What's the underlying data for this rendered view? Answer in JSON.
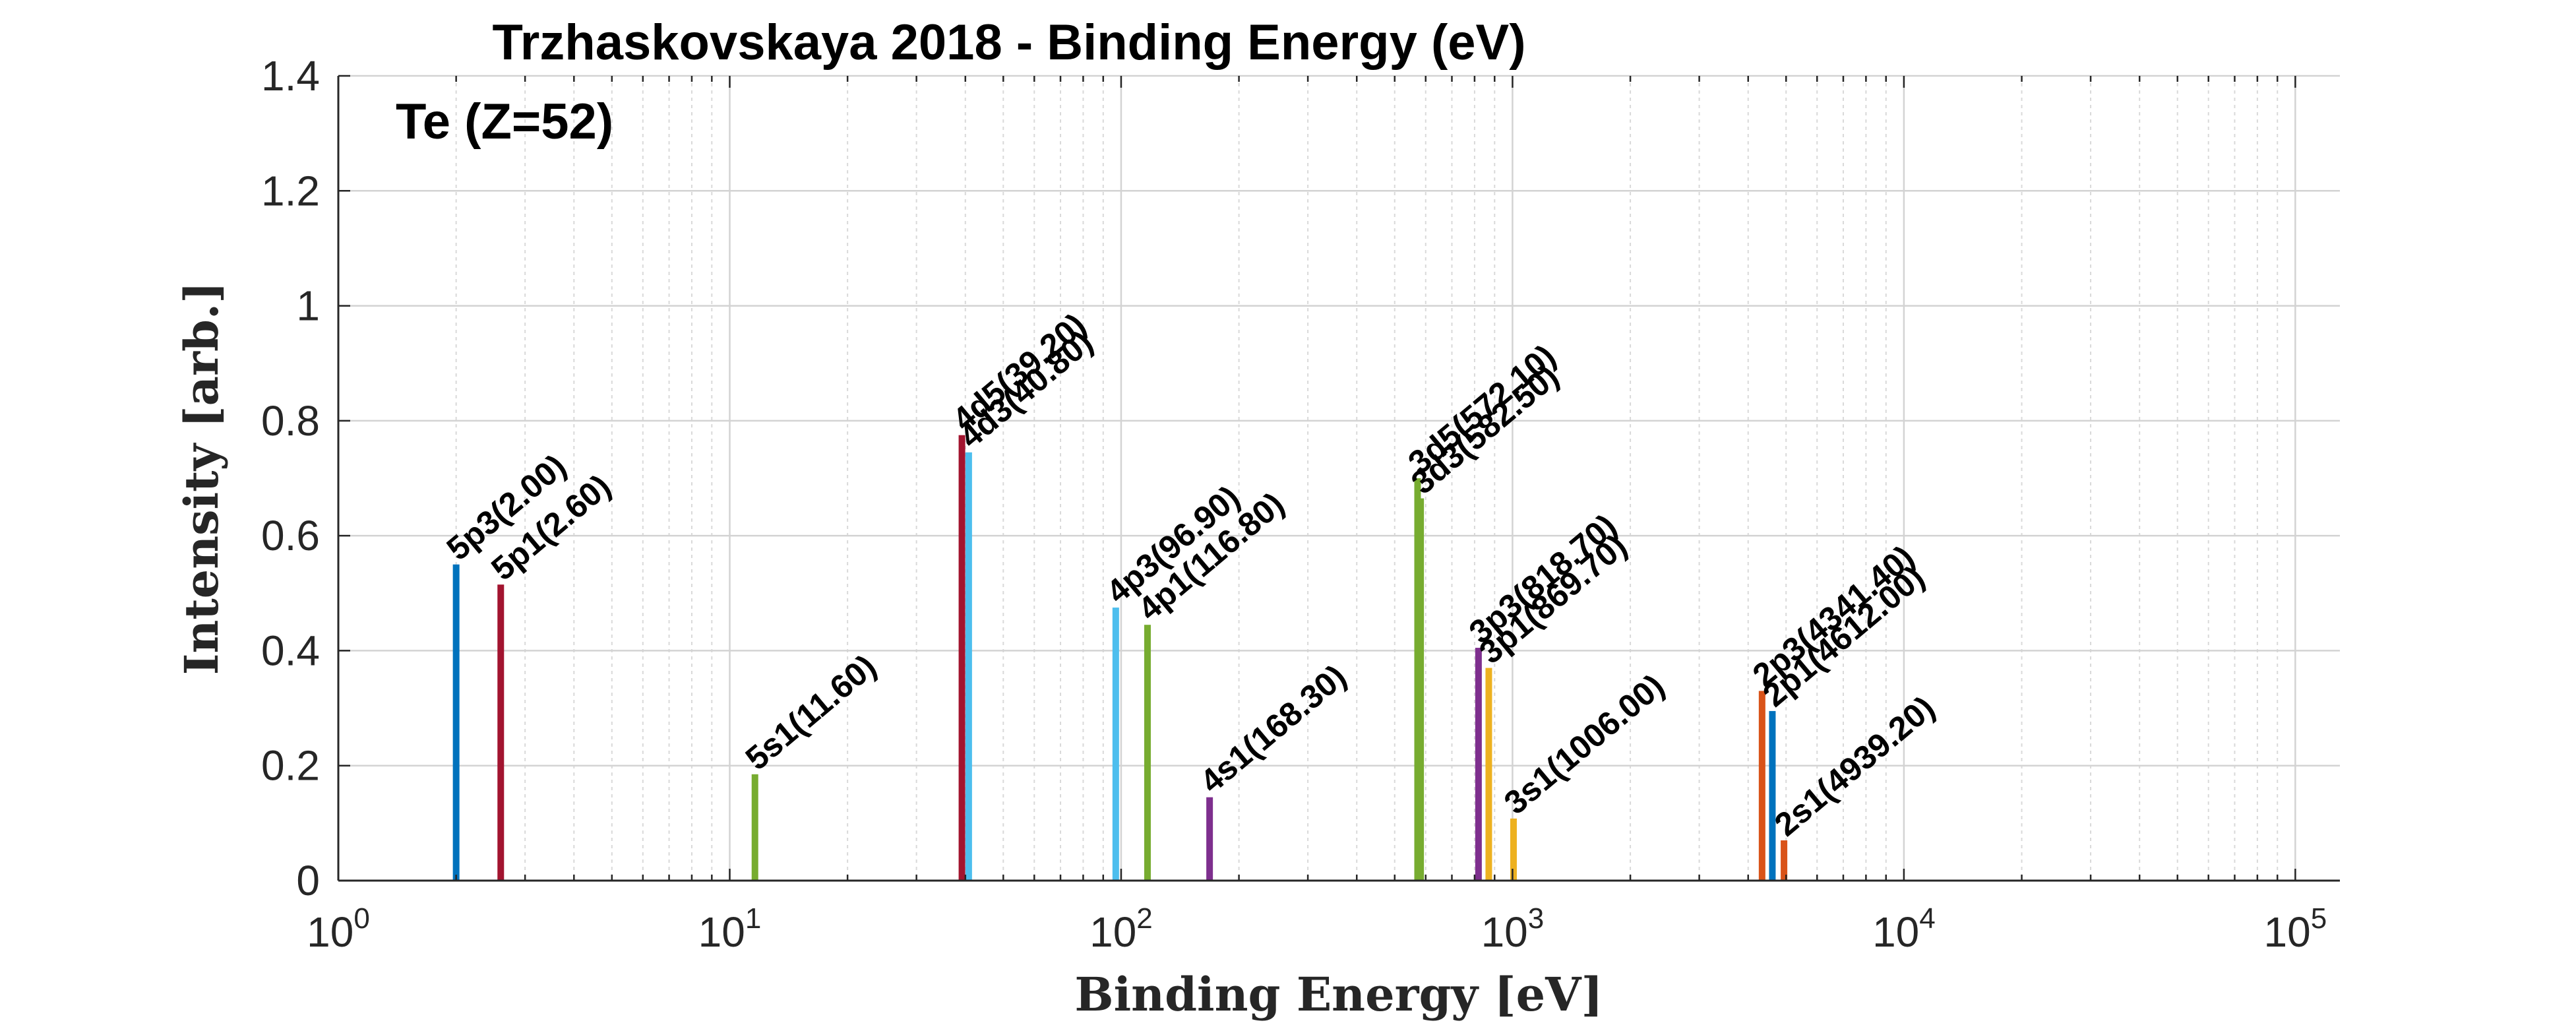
{
  "chart_data": {
    "type": "bar",
    "title": "Trzhaskovskaya 2018 - Binding Energy (eV)",
    "annotation": "Te (Z=52)",
    "xlabel": "Binding Energy [eV]",
    "ylabel": "Intensity [arb.]",
    "xscale": "log",
    "xlim": [
      1,
      130000
    ],
    "ylim": [
      0,
      1.4
    ],
    "grid": true,
    "x_ticks": [
      {
        "base": "10",
        "exp": "0"
      },
      {
        "base": "10",
        "exp": "1"
      },
      {
        "base": "10",
        "exp": "2"
      },
      {
        "base": "10",
        "exp": "3"
      },
      {
        "base": "10",
        "exp": "4"
      },
      {
        "base": "10",
        "exp": "5"
      }
    ],
    "y_ticks": [
      "0",
      "0.2",
      "0.4",
      "0.6",
      "0.8",
      "1",
      "1.2",
      "1.4"
    ],
    "bars": [
      {
        "label": "5p3(2.00)",
        "x": 2.0,
        "y": 0.55,
        "color": "#0072BD"
      },
      {
        "label": "5p1(2.60)",
        "x": 2.6,
        "y": 0.515,
        "color": "#A2142F"
      },
      {
        "label": "5s1(11.60)",
        "x": 11.6,
        "y": 0.185,
        "color": "#77AC30"
      },
      {
        "label": "4d5(39.20)",
        "x": 39.2,
        "y": 0.775,
        "color": "#A2142F"
      },
      {
        "label": "4d3(40.80)",
        "x": 40.8,
        "y": 0.745,
        "color": "#4DBEEE"
      },
      {
        "label": "4p3(96.90)",
        "x": 96.9,
        "y": 0.475,
        "color": "#4DBEEE"
      },
      {
        "label": "4p1(116.80)",
        "x": 116.8,
        "y": 0.445,
        "color": "#77AC30"
      },
      {
        "label": "4s1(168.30)",
        "x": 168.3,
        "y": 0.145,
        "color": "#7E2F8E"
      },
      {
        "label": "3d5(572.10)",
        "x": 572.1,
        "y": 0.7,
        "color": "#77AC30"
      },
      {
        "label": "3d3(582.50)",
        "x": 582.5,
        "y": 0.665,
        "color": "#77AC30"
      },
      {
        "label": "3p3(818.70)",
        "x": 818.7,
        "y": 0.405,
        "color": "#7E2F8E"
      },
      {
        "label": "3p1(869.70)",
        "x": 869.7,
        "y": 0.37,
        "color": "#EDB120"
      },
      {
        "label": "3s1(1006.00)",
        "x": 1006.0,
        "y": 0.108,
        "color": "#EDB120"
      },
      {
        "label": "2p3(4341.40)",
        "x": 4341.4,
        "y": 0.33,
        "color": "#D95319"
      },
      {
        "label": "2p1(4612.00)",
        "x": 4612.0,
        "y": 0.295,
        "color": "#0072BD"
      },
      {
        "label": "2s1(4939.20)",
        "x": 4939.2,
        "y": 0.07,
        "color": "#D95319"
      }
    ]
  }
}
